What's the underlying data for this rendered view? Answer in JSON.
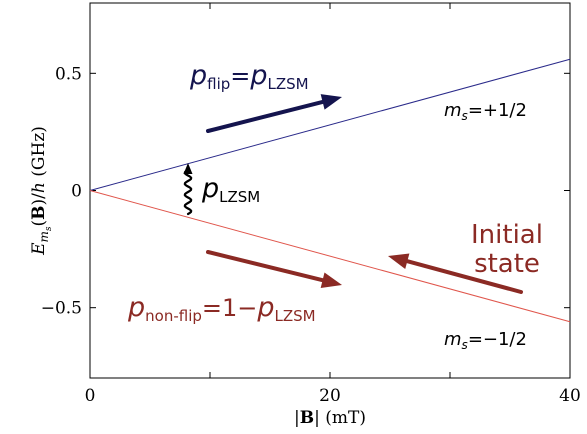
{
  "chart_data": {
    "type": "line",
    "xlabel": "|B| (mT)",
    "ylabel": "E_ms(B)/h (GHz)",
    "xlim": [
      0,
      40
    ],
    "ylim": [
      -0.8,
      0.8
    ],
    "x_ticks": [
      0,
      10,
      20,
      30,
      40
    ],
    "x_tick_labels": [
      "0",
      "",
      "20",
      "",
      "40"
    ],
    "y_ticks": [
      -0.5,
      0,
      0.5
    ],
    "y_tick_labels": [
      "−0.5",
      "0",
      "0.5"
    ],
    "grid": false,
    "series": [
      {
        "name": "m_s=+1/2",
        "color": "#2a2a8a",
        "x": [
          0,
          40
        ],
        "y": [
          0,
          0.56
        ]
      },
      {
        "name": "m_s=−1/2",
        "color": "#e0564c",
        "x": [
          0,
          40
        ],
        "y": [
          0,
          -0.56
        ]
      }
    ],
    "annotations": {
      "p_flip": {
        "lhs_base": "p",
        "lhs_sub": "flip",
        "eq": "=",
        "rhs_base": "p",
        "rhs_sub": "LZSM",
        "color": "#14144e"
      },
      "p_lzsm": {
        "base": "p",
        "sub": "LZSM",
        "color": "#000000"
      },
      "p_nonflip": {
        "lhs_base": "p",
        "lhs_sub": "non-flip",
        "eq": "=1−",
        "rhs_base": "p",
        "rhs_sub": "LZSM",
        "color": "#8b2a24"
      },
      "initial_state": {
        "line1": "Initial",
        "line2": "state",
        "color": "#8b2a24"
      },
      "ms_plus": {
        "base": "m",
        "sub": "s",
        "value": "=+1/2"
      },
      "ms_minus": {
        "base": "m",
        "sub": "s",
        "value": "=−1/2"
      }
    }
  }
}
